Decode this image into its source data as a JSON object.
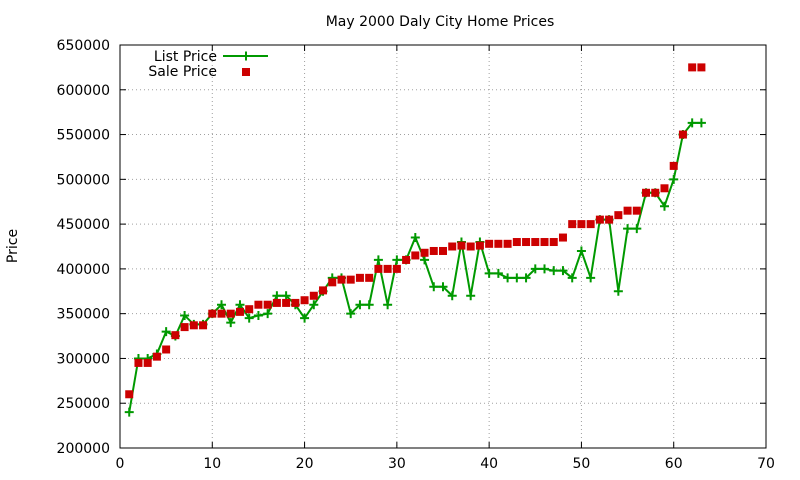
{
  "chart_data": {
    "type": "line",
    "title": "May 2000 Daly City Home Prices",
    "xlabel": "",
    "ylabel": "Price",
    "xlim": [
      0,
      70
    ],
    "ylim": [
      200000,
      650000
    ],
    "xticks": [
      0,
      10,
      20,
      30,
      40,
      50,
      60,
      70
    ],
    "yticks": [
      200000,
      250000,
      300000,
      350000,
      400000,
      450000,
      500000,
      550000,
      600000,
      650000
    ],
    "grid": true,
    "legend_position": "top-left",
    "series": [
      {
        "name": "List Price",
        "style": "line+plus-markers",
        "color": "#009900",
        "points": [
          [
            1,
            240000
          ],
          [
            2,
            300000
          ],
          [
            3,
            300000
          ],
          [
            4,
            305000
          ],
          [
            5,
            330000
          ],
          [
            6,
            325000
          ],
          [
            7,
            348000
          ],
          [
            8,
            338000
          ],
          [
            9,
            338000
          ],
          [
            10,
            350000
          ],
          [
            11,
            360000
          ],
          [
            12,
            340000
          ],
          [
            13,
            360000
          ],
          [
            14,
            345000
          ],
          [
            15,
            348000
          ],
          [
            16,
            350000
          ],
          [
            17,
            370000
          ],
          [
            18,
            370000
          ],
          [
            19,
            360000
          ],
          [
            20,
            345000
          ],
          [
            21,
            360000
          ],
          [
            22,
            375000
          ],
          [
            23,
            390000
          ],
          [
            24,
            390000
          ],
          [
            25,
            350000
          ],
          [
            26,
            360000
          ],
          [
            27,
            360000
          ],
          [
            28,
            410000
          ],
          [
            29,
            360000
          ],
          [
            30,
            410000
          ],
          [
            31,
            410000
          ],
          [
            32,
            435000
          ],
          [
            33,
            410000
          ],
          [
            34,
            380000
          ],
          [
            35,
            380000
          ],
          [
            36,
            370000
          ],
          [
            37,
            430000
          ],
          [
            38,
            370000
          ],
          [
            39,
            430000
          ],
          [
            40,
            395000
          ],
          [
            41,
            395000
          ],
          [
            42,
            390000
          ],
          [
            43,
            390000
          ],
          [
            44,
            390000
          ],
          [
            45,
            400000
          ],
          [
            46,
            400000
          ],
          [
            47,
            398000
          ],
          [
            48,
            398000
          ],
          [
            49,
            390000
          ],
          [
            50,
            420000
          ],
          [
            51,
            390000
          ],
          [
            52,
            455000
          ],
          [
            53,
            455000
          ],
          [
            54,
            375000
          ],
          [
            55,
            445000
          ],
          [
            56,
            445000
          ],
          [
            57,
            485000
          ],
          [
            58,
            485000
          ],
          [
            59,
            470000
          ],
          [
            60,
            500000
          ],
          [
            61,
            550000
          ],
          [
            62,
            563000
          ],
          [
            63,
            563000
          ]
        ]
      },
      {
        "name": "Sale Price",
        "style": "square-markers",
        "color": "#cc0000",
        "points": [
          [
            1,
            260000
          ],
          [
            2,
            295000
          ],
          [
            3,
            295000
          ],
          [
            4,
            302000
          ],
          [
            5,
            310000
          ],
          [
            6,
            326000
          ],
          [
            7,
            335000
          ],
          [
            8,
            337000
          ],
          [
            9,
            337000
          ],
          [
            10,
            350000
          ],
          [
            11,
            350000
          ],
          [
            12,
            350000
          ],
          [
            13,
            352000
          ],
          [
            14,
            355000
          ],
          [
            15,
            360000
          ],
          [
            16,
            360000
          ],
          [
            17,
            362000
          ],
          [
            18,
            362000
          ],
          [
            19,
            362000
          ],
          [
            20,
            365000
          ],
          [
            21,
            370000
          ],
          [
            22,
            376000
          ],
          [
            23,
            385000
          ],
          [
            24,
            388000
          ],
          [
            25,
            388000
          ],
          [
            26,
            390000
          ],
          [
            27,
            390000
          ],
          [
            28,
            400000
          ],
          [
            29,
            400000
          ],
          [
            30,
            400000
          ],
          [
            31,
            410000
          ],
          [
            32,
            415000
          ],
          [
            33,
            418000
          ],
          [
            34,
            420000
          ],
          [
            35,
            420000
          ],
          [
            36,
            425000
          ],
          [
            37,
            426000
          ],
          [
            38,
            425000
          ],
          [
            39,
            426000
          ],
          [
            40,
            428000
          ],
          [
            41,
            428000
          ],
          [
            42,
            428000
          ],
          [
            43,
            430000
          ],
          [
            44,
            430000
          ],
          [
            45,
            430000
          ],
          [
            46,
            430000
          ],
          [
            47,
            430000
          ],
          [
            48,
            435000
          ],
          [
            49,
            450000
          ],
          [
            50,
            450000
          ],
          [
            51,
            450000
          ],
          [
            52,
            455000
          ],
          [
            53,
            455000
          ],
          [
            54,
            460000
          ],
          [
            55,
            465000
          ],
          [
            56,
            465000
          ],
          [
            57,
            485000
          ],
          [
            58,
            485000
          ],
          [
            59,
            490000
          ],
          [
            60,
            515000
          ],
          [
            61,
            550000
          ],
          [
            62,
            625000
          ],
          [
            63,
            625000
          ]
        ]
      }
    ]
  }
}
